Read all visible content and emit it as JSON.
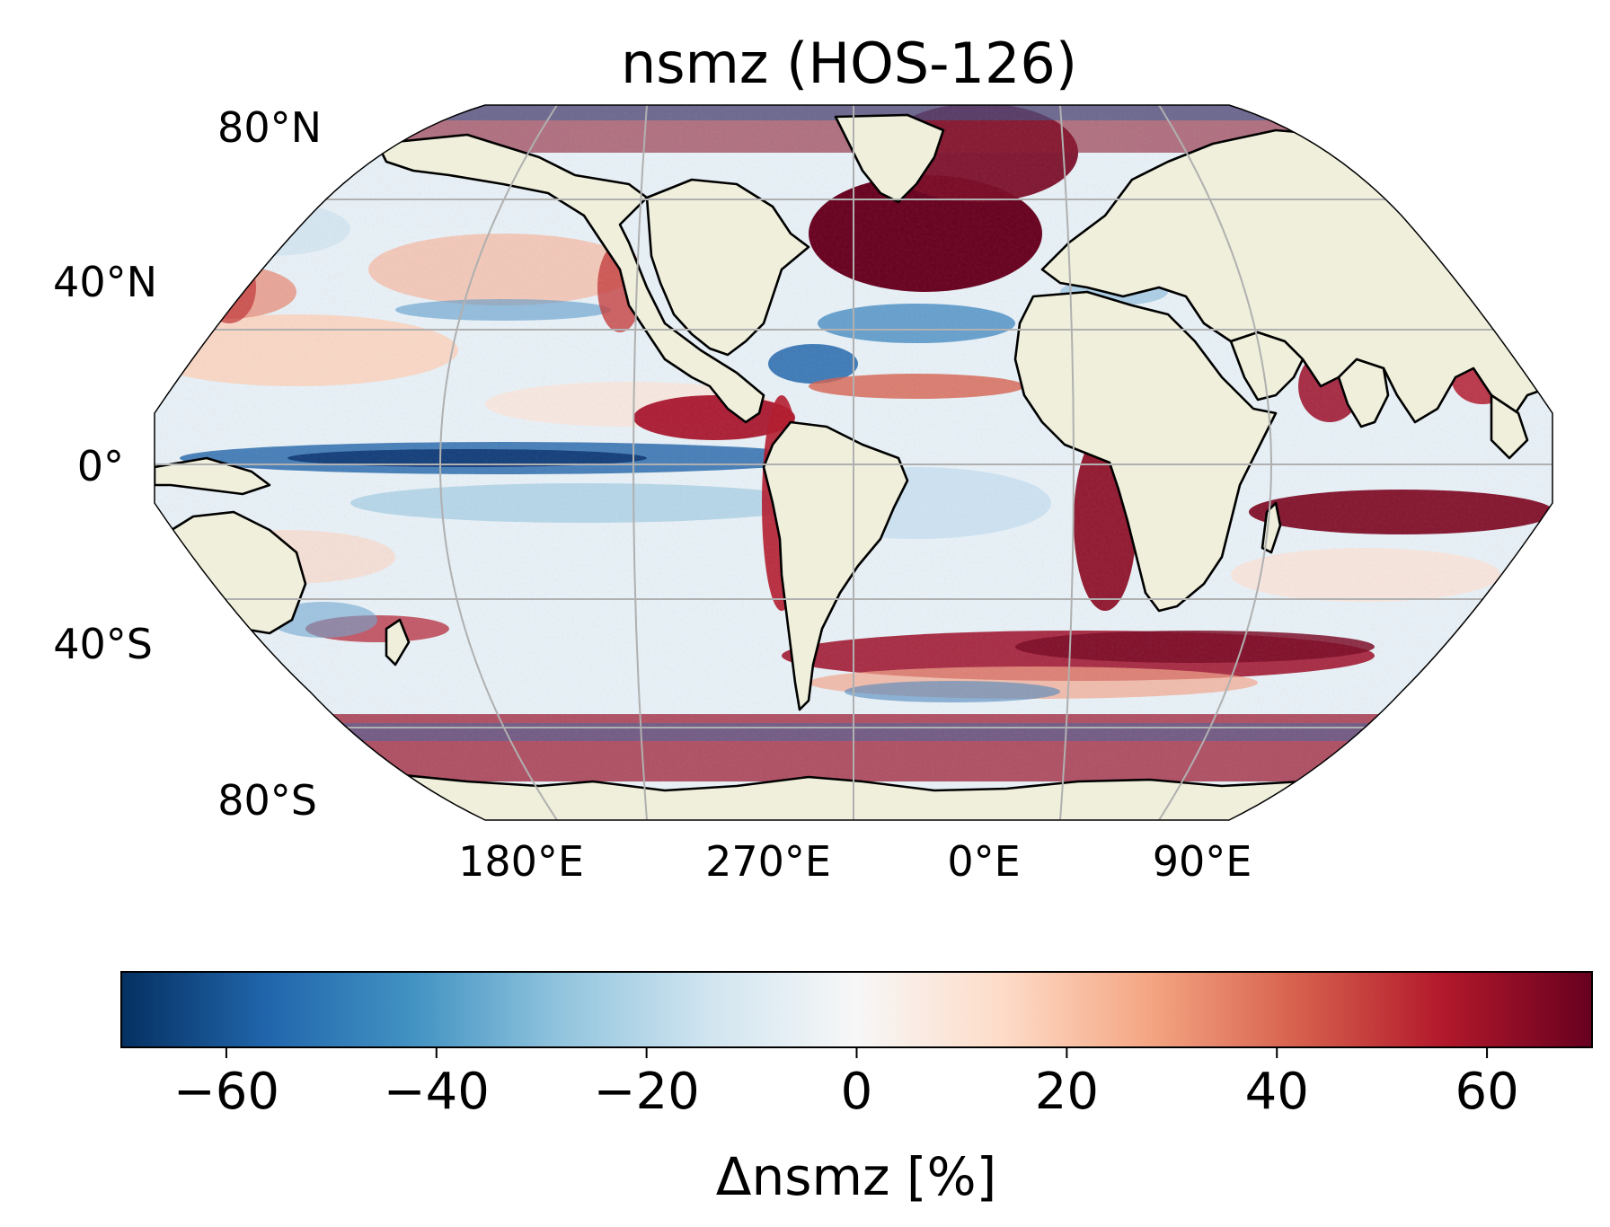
{
  "title": "nsmz (HOS-126)",
  "map": {
    "projection": "Robinson",
    "central_longitude_label": "0°E",
    "land_color": "#efefdb",
    "coastline_color": "#000000",
    "gridline_color": "#b0b0b0",
    "lat_labels": [
      "80°N",
      "40°N",
      "0°",
      "40°S",
      "80°S"
    ],
    "lon_labels": [
      "180°E",
      "270°E",
      "0°E",
      "90°E"
    ]
  },
  "colorbar": {
    "label": "Δnsmz [%]",
    "cmap": "RdBu_r",
    "min": -70,
    "max": 70,
    "ticks": [
      -60,
      -40,
      -20,
      0,
      20,
      40,
      60
    ],
    "tick_labels": [
      "−60",
      "−40",
      "−20",
      "0",
      "20",
      "40",
      "60"
    ],
    "colors": [
      "#053061",
      "#2166ac",
      "#4393c3",
      "#92c5de",
      "#d1e5f0",
      "#f7f7f7",
      "#fddbc7",
      "#f4a582",
      "#d6604d",
      "#b2182b",
      "#67001f"
    ]
  }
}
